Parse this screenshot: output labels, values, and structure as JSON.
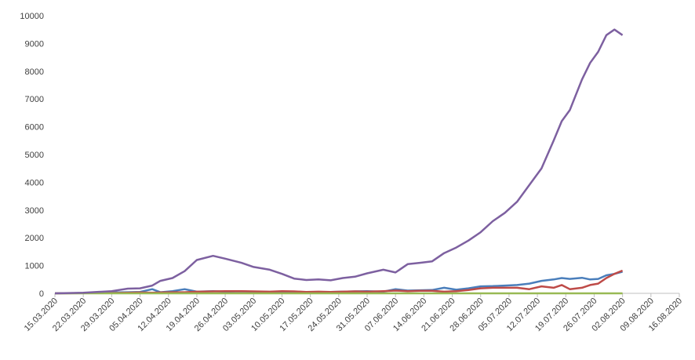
{
  "chart_data": {
    "type": "line",
    "x": [
      "15.03.2020",
      "22.03.2020",
      "29.03.2020",
      "02.04.2020",
      "05.04.2020",
      "08.04.2020",
      "10.04.2020",
      "13.04.2020",
      "16.04.2020",
      "19.04.2020",
      "23.04.2020",
      "26.04.2020",
      "30.04.2020",
      "03.05.2020",
      "07.05.2020",
      "10.05.2020",
      "13.05.2020",
      "16.05.2020",
      "19.05.2020",
      "22.05.2020",
      "25.05.2020",
      "28.05.2020",
      "31.05.2020",
      "04.06.2020",
      "07.06.2020",
      "10.06.2020",
      "13.06.2020",
      "16.06.2020",
      "19.06.2020",
      "22.06.2020",
      "25.06.2020",
      "28.06.2020",
      "01.07.2020",
      "04.07.2020",
      "07.07.2020",
      "10.07.2020",
      "13.07.2020",
      "16.07.2020",
      "18.07.2020",
      "20.07.2020",
      "23.07.2020",
      "25.07.2020",
      "27.07.2020",
      "29.07.2020",
      "31.07.2020",
      "02.08.2020"
    ],
    "series": [
      {
        "color": "#4a7ebb",
        "values": [
          0,
          10,
          30,
          40,
          50,
          150,
          40,
          80,
          150,
          60,
          80,
          60,
          70,
          60,
          50,
          50,
          60,
          40,
          50,
          50,
          60,
          70,
          80,
          60,
          150,
          100,
          110,
          120,
          200,
          130,
          180,
          250,
          260,
          280,
          300,
          350,
          450,
          500,
          550,
          520,
          560,
          500,
          520,
          650,
          700,
          780
        ]
      },
      {
        "color": "#be4b48",
        "values": [
          0,
          5,
          10,
          20,
          30,
          20,
          30,
          40,
          40,
          60,
          70,
          80,
          80,
          70,
          60,
          80,
          70,
          50,
          60,
          50,
          60,
          70,
          60,
          80,
          100,
          80,
          90,
          90,
          60,
          80,
          120,
          180,
          200,
          200,
          200,
          150,
          250,
          200,
          300,
          150,
          200,
          300,
          350,
          550,
          700,
          820
        ]
      },
      {
        "color": "#98b954",
        "values": [
          0,
          0,
          0,
          0,
          0,
          0,
          0,
          0,
          0,
          0,
          0,
          0,
          0,
          0,
          0,
          0,
          0,
          0,
          0,
          0,
          0,
          0,
          0,
          0,
          0,
          0,
          0,
          0,
          0,
          0,
          0,
          0,
          0,
          0,
          0,
          0,
          0,
          0,
          0,
          0,
          0,
          0,
          0,
          0,
          0,
          0
        ]
      },
      {
        "color": "#7d60a0",
        "values": [
          0,
          20,
          80,
          170,
          180,
          280,
          450,
          550,
          800,
          1200,
          1350,
          1250,
          1100,
          950,
          850,
          700,
          530,
          480,
          500,
          470,
          550,
          600,
          720,
          850,
          750,
          1050,
          1100,
          1150,
          1450,
          1650,
          1900,
          2200,
          2600,
          2900,
          3300,
          3900,
          4500,
          5500,
          6200,
          6600,
          7700,
          8300,
          8700,
          9300,
          9500,
          9300
        ]
      }
    ],
    "xlim": [
      "15.03.2020",
      "16.08.2020"
    ],
    "xticks": [
      "15.03.2020",
      "22.03.2020",
      "29.03.2020",
      "05.04.2020",
      "12.04.2020",
      "19.04.2020",
      "26.04.2020",
      "03.05.2020",
      "10.05.2020",
      "17.05.2020",
      "24.05.2020",
      "31.05.2020",
      "07.06.2020",
      "14.06.2020",
      "21.06.2020",
      "28.06.2020",
      "05.07.2020",
      "12.07.2020",
      "19.07.2020",
      "26.07.2020",
      "02.08.2020",
      "09.08.2020",
      "16.08.2020"
    ],
    "ylim": [
      0,
      10000
    ],
    "yticks": [
      0,
      1000,
      2000,
      3000,
      4000,
      5000,
      6000,
      7000,
      8000,
      9000,
      10000
    ],
    "grid": false
  }
}
